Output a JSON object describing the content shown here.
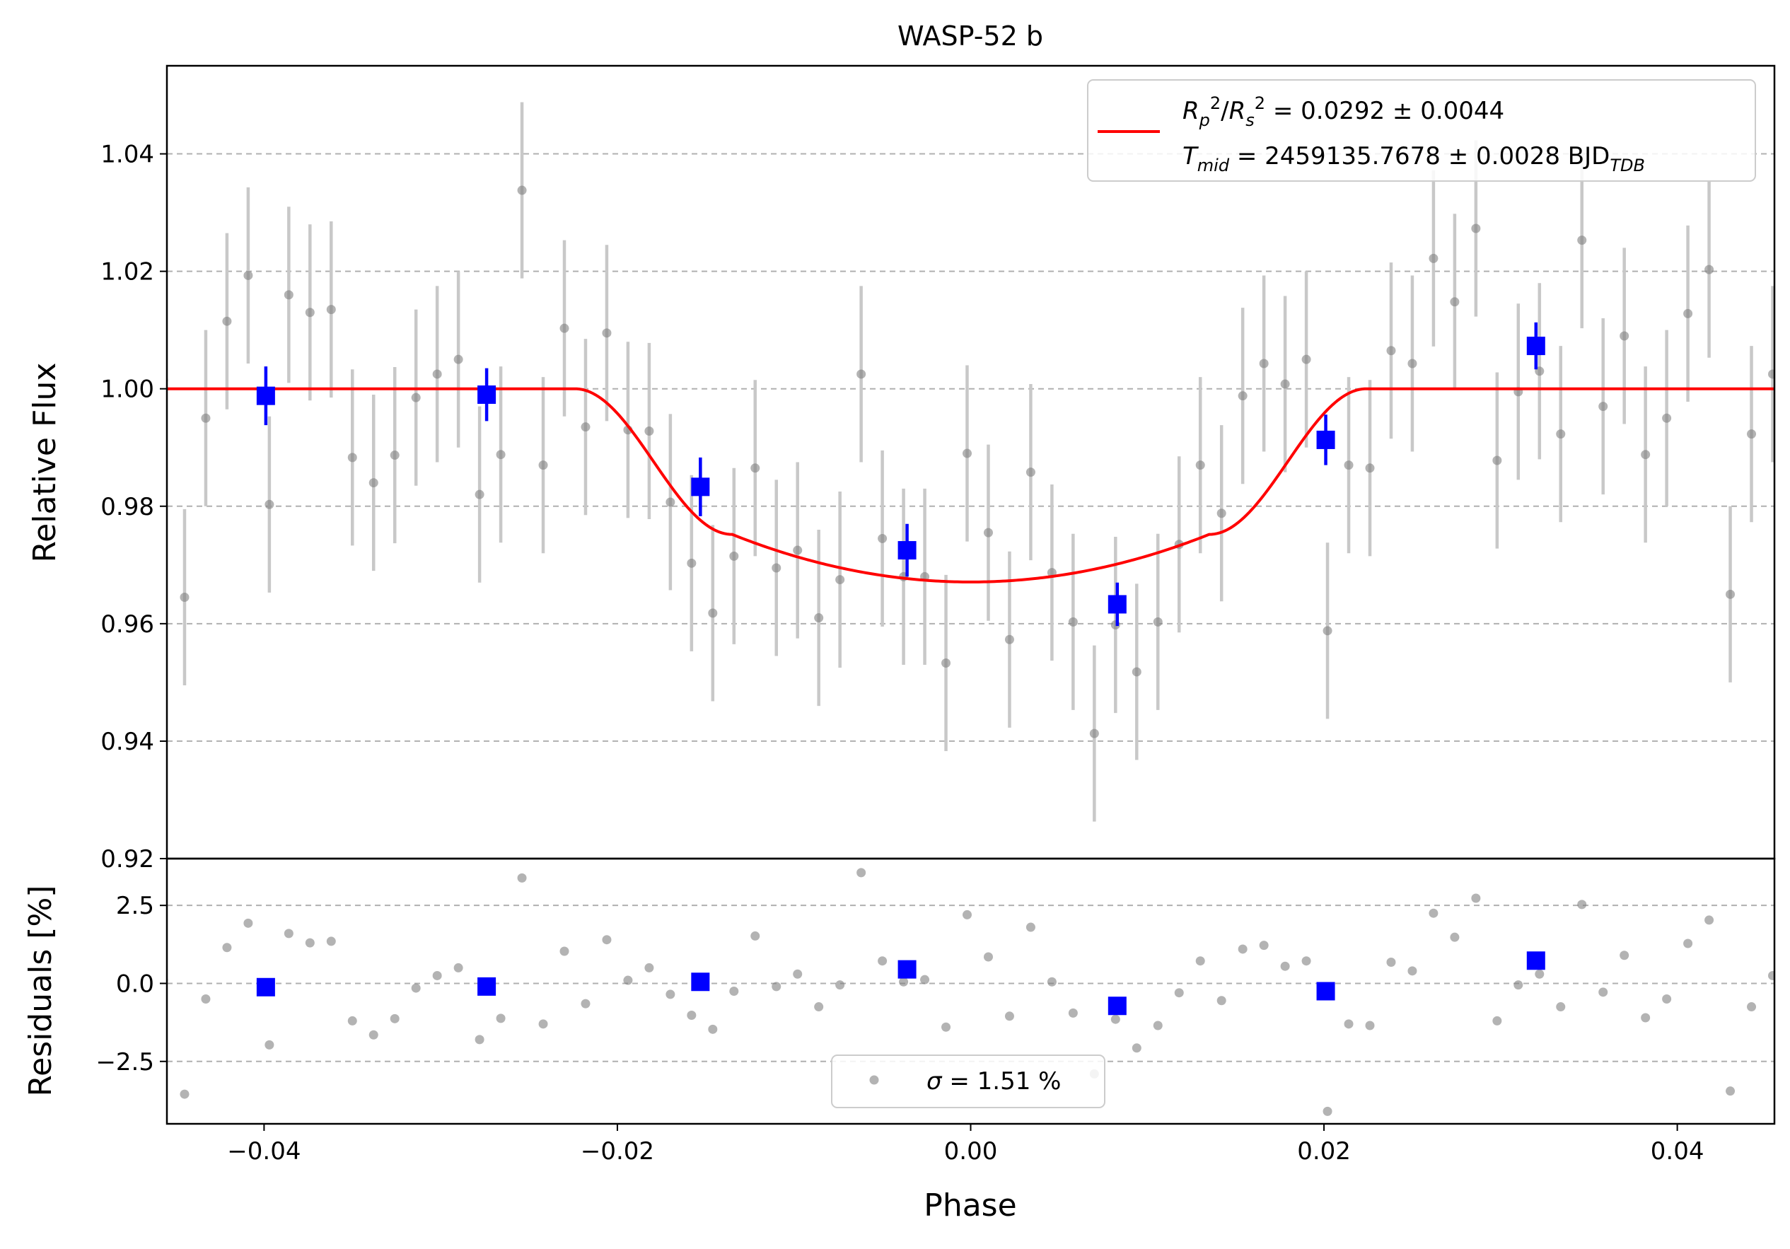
{
  "chart_data": [
    {
      "type": "scatter",
      "panel": "main",
      "title": "WASP-52 b",
      "xlabel": "",
      "ylabel": "Relative Flux",
      "xlim": [
        -0.0455,
        0.0455
      ],
      "ylim": [
        0.92,
        1.055
      ],
      "x_ticks": [
        "−0.04",
        "−0.02",
        "0.00",
        "0.02",
        "0.04"
      ],
      "y_ticks": [
        "0.92",
        "0.94",
        "0.96",
        "0.98",
        "1.00",
        "1.02",
        "1.04"
      ],
      "y_tick_values": [
        0.92,
        0.94,
        0.96,
        0.98,
        1.0,
        1.02,
        1.04
      ],
      "grid": "horizontal dashed",
      "legend_position": "top-right",
      "legend": {
        "line1": "R_p^2/R_s^2 = 0.0292 ± 0.0044",
        "line2": "T_mid = 2459135.7678 ± 0.0028 BJD_TDB"
      },
      "colors": {
        "data": "#808080",
        "errorbar": "#c8c8c8",
        "binned": "#0000ff",
        "model": "#ff0000",
        "grid": "#b0b0b0"
      },
      "series": [
        {
          "kind": "data",
          "x": [
            -0.0457,
            -0.0445,
            -0.0433,
            -0.0421,
            -0.0409,
            -0.0397,
            -0.0386,
            -0.0374,
            -0.0362,
            -0.035,
            -0.0338,
            -0.0326,
            -0.0314,
            -0.0302,
            -0.029,
            -0.0278,
            -0.0266,
            -0.0254,
            -0.0242,
            -0.023,
            -0.0218,
            -0.0206,
            -0.0194,
            -0.0182,
            -0.017,
            -0.0158,
            -0.0146,
            -0.0134,
            -0.0122,
            -0.011,
            -0.0098,
            -0.0086,
            -0.0074,
            -0.0062,
            -0.005,
            -0.0038,
            -0.0026,
            -0.0014,
            -0.0002,
            0.001,
            0.0022,
            0.0034,
            0.0046,
            0.0058,
            0.007,
            0.0082,
            0.0094,
            0.0106,
            0.0118,
            0.013,
            0.0142,
            0.0154,
            0.0166,
            0.0178,
            0.019,
            0.0202,
            0.0214,
            0.0226,
            0.0238,
            0.025,
            0.0262,
            0.0274,
            0.0286,
            0.0298,
            0.031,
            0.0322,
            0.0334,
            0.0346,
            0.0358,
            0.037,
            0.0382,
            0.0394,
            0.0406,
            0.0418,
            0.043,
            0.0442,
            0.0454
          ],
          "y": [
            1.0015,
            0.9645,
            0.995,
            1.0115,
            1.0193,
            0.9803,
            1.016,
            1.013,
            1.0135,
            0.9883,
            0.984,
            0.9887,
            0.9985,
            1.0025,
            1.005,
            0.982,
            0.9888,
            1.0338,
            0.987,
            1.0103,
            0.9935,
            1.0095,
            0.993,
            0.9928,
            0.9807,
            0.9703,
            0.9618,
            0.9715,
            0.9865,
            0.9695,
            0.9725,
            0.961,
            0.9675,
            1.0025,
            0.9745,
            0.968,
            0.968,
            0.9533,
            0.989,
            0.9755,
            0.9573,
            0.9858,
            0.9687,
            0.9603,
            0.9413,
            0.9598,
            0.9518,
            0.9603,
            0.9735,
            0.987,
            0.9788,
            0.9988,
            1.0043,
            1.0008,
            1.005,
            0.9588,
            0.987,
            0.9865,
            1.0065,
            1.0043,
            1.0222,
            1.0148,
            1.0273,
            0.9878,
            0.9995,
            1.003,
            0.9923,
            1.0253,
            0.997,
            1.009,
            0.9888,
            0.995,
            1.0128,
            1.0203,
            0.965,
            0.9923,
            1.0025
          ],
          "yerr": 0.015
        },
        {
          "kind": "binned",
          "x": [
            -0.0399,
            -0.0274,
            -0.0153,
            -0.0036,
            0.0083,
            0.0201,
            0.032
          ],
          "y": [
            0.9988,
            0.999,
            0.9833,
            0.9725,
            0.9633,
            0.9913,
            1.0073
          ],
          "yerr": [
            0.005,
            0.0045,
            0.005,
            0.0045,
            0.0037,
            0.0043,
            0.004
          ]
        },
        {
          "kind": "model",
          "baseline": 1.0,
          "depth": 0.0329,
          "t14_half": 0.0224,
          "t23_half": 0.0135,
          "ingress_end_level": 0.9752
        }
      ]
    },
    {
      "type": "scatter",
      "panel": "residuals",
      "xlabel": "Phase",
      "ylabel": "Residuals [%]",
      "xlim": [
        -0.0455,
        0.0455
      ],
      "ylim": [
        -4.5,
        4.0
      ],
      "y_ticks": [
        "−2.5",
        "0.0",
        "2.5"
      ],
      "y_tick_values": [
        -2.5,
        0.0,
        2.5
      ],
      "legend_position": "bottom-center",
      "legend": {
        "label": "σ = 1.51 %"
      },
      "series": [
        {
          "kind": "residuals",
          "y": [
            0.1,
            -3.55,
            -0.5,
            1.15,
            1.93,
            -1.97,
            1.6,
            1.3,
            1.35,
            -1.2,
            -1.65,
            -1.13,
            -0.15,
            0.25,
            0.5,
            -1.8,
            -1.12,
            3.38,
            -1.3,
            1.03,
            -0.65,
            1.4,
            0.1,
            0.5,
            -0.35,
            -1.02,
            -1.47,
            -0.25,
            1.52,
            -0.1,
            0.3,
            -0.75,
            -0.05,
            3.55,
            0.72,
            0.05,
            0.12,
            -1.4,
            2.2,
            0.85,
            -1.05,
            1.8,
            0.05,
            -0.95,
            -2.9,
            -1.15,
            -2.07,
            -1.35,
            -0.3,
            0.72,
            -0.55,
            1.1,
            1.22,
            0.55,
            0.72,
            -4.1,
            -1.3,
            -1.35,
            0.68,
            0.4,
            2.25,
            1.48,
            2.73,
            -1.2,
            -0.05,
            0.3,
            -0.75,
            2.53,
            -0.28,
            0.9,
            -1.1,
            -0.5,
            1.28,
            2.03,
            -3.45,
            -0.75,
            0.25
          ]
        },
        {
          "kind": "binned",
          "x": [
            -0.0399,
            -0.0274,
            -0.0153,
            -0.0036,
            0.0083,
            0.0201,
            0.032
          ],
          "y": [
            -0.12,
            -0.1,
            0.05,
            0.45,
            -0.72,
            -0.25,
            0.73
          ]
        }
      ]
    }
  ]
}
